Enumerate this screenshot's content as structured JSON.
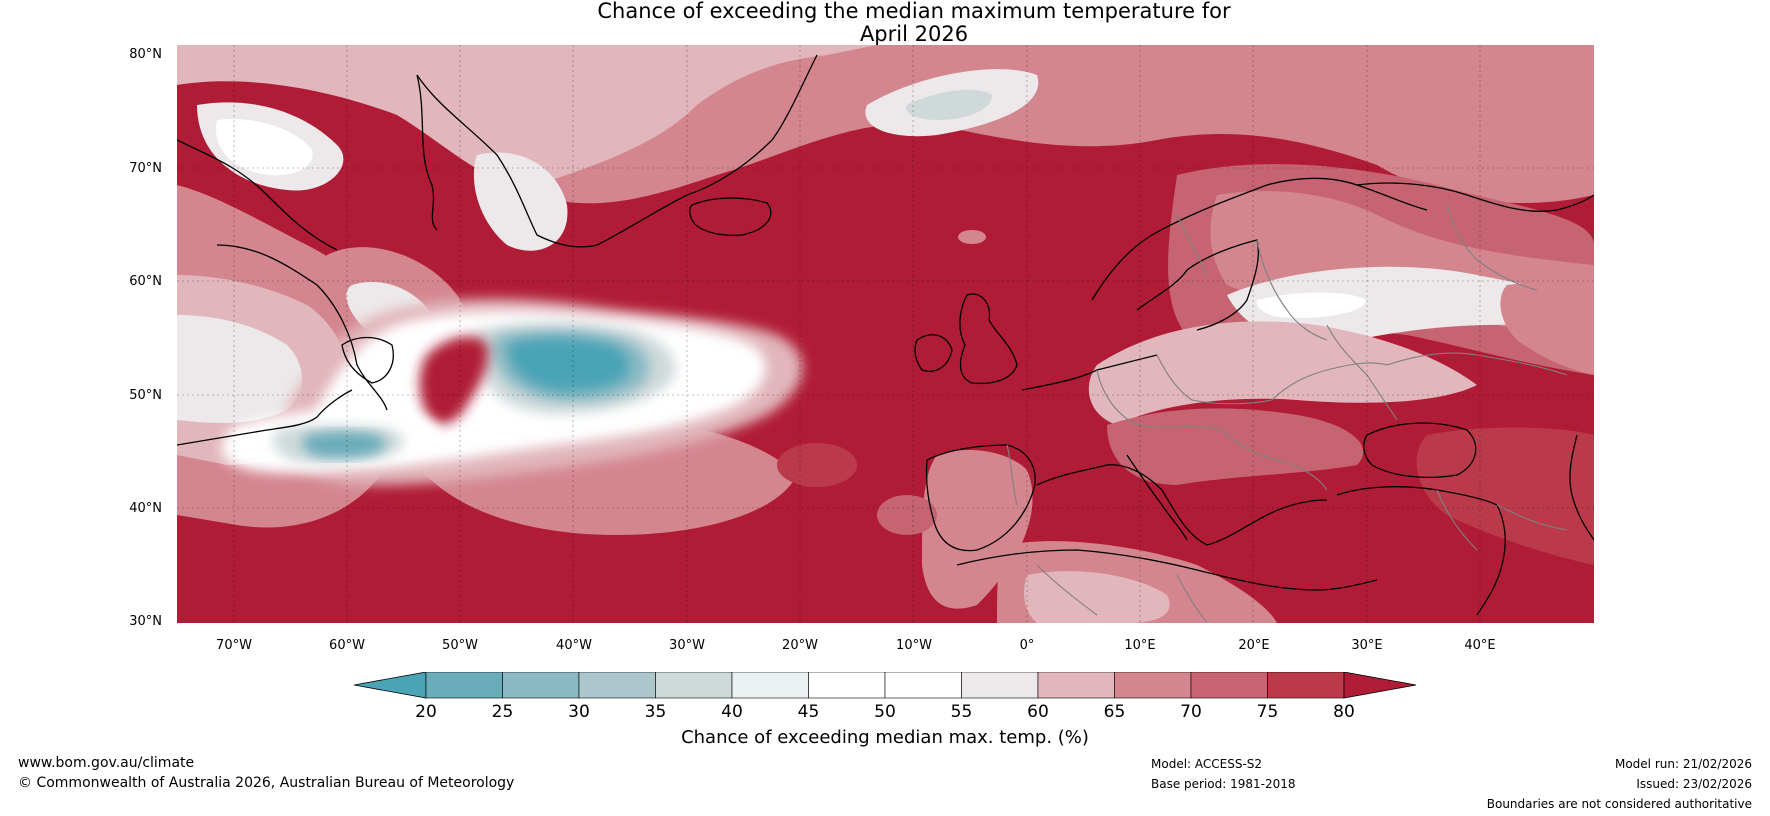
{
  "map": {
    "title_line1": "Chance of exceeding the median maximum temperature for",
    "title_line2": "April 2026",
    "lat_ticks": [
      "80°N",
      "70°N",
      "60°N",
      "50°N",
      "40°N",
      "30°N"
    ],
    "lon_ticks": [
      "70°W",
      "60°W",
      "50°W",
      "40°W",
      "30°W",
      "20°W",
      "10°W",
      "0°",
      "10°E",
      "20°E",
      "30°E",
      "40°E"
    ],
    "colorbar": {
      "label": "Chance of exceeding median max. temp. (%)",
      "ticks": [
        "20",
        "25",
        "30",
        "35",
        "40",
        "45",
        "50",
        "55",
        "60",
        "65",
        "70",
        "75",
        "80"
      ],
      "colors": [
        "#4aa3b6",
        "#6aacba",
        "#8ab9c4",
        "#abc7cb",
        "#cfd9da",
        "#ebf1f2",
        "#ffffff",
        "#ffffff",
        "#ede8e9",
        "#e1b6bc",
        "#d4868f",
        "#c66571",
        "#bb3a4a",
        "#b01c35"
      ]
    },
    "colors": {
      "deep_red": "#b01c35",
      "red": "#bb3a4a",
      "mid_red": "#c66571",
      "pink": "#d4868f",
      "light_pink": "#e1b6bc",
      "grey_white": "#ede8e9",
      "white": "#ffffff",
      "pale_blue": "#cfd9da",
      "blue": "#6aacba",
      "teal": "#4aa3b6",
      "coast": "#000000",
      "border": "#808080"
    }
  },
  "footer": {
    "website": "www.bom.gov.au/climate",
    "copyright": "© Commonwealth of Australia 2026, Australian Bureau of Meteorology",
    "model": "Model: ACCESS-S2",
    "base_period": "Base period: 1981-2018",
    "model_run": "Model run: 21/02/2026",
    "issued": "Issued: 23/02/2026",
    "boundaries_note": "Boundaries are not considered authoritative"
  }
}
